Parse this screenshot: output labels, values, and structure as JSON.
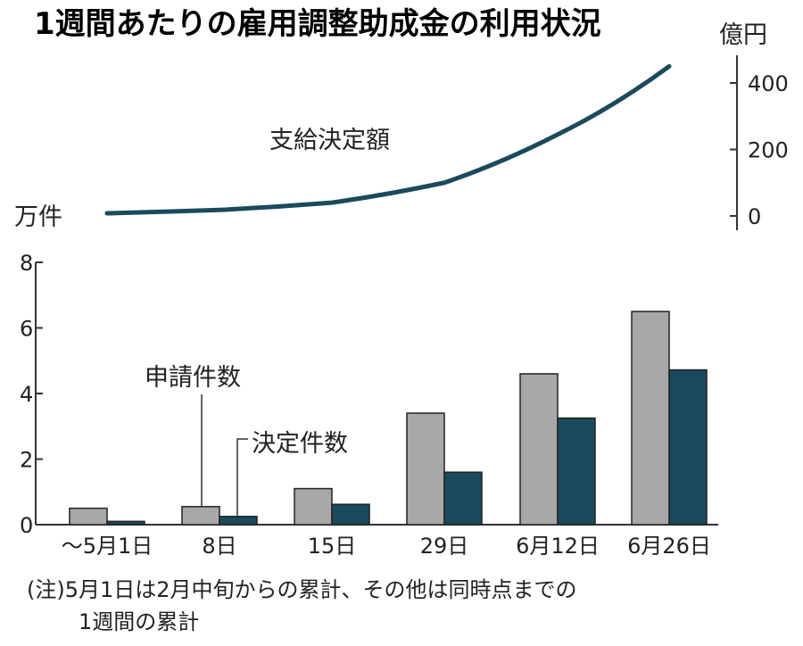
{
  "chart_data": {
    "title": "1週間あたりの雇用調整助成金の利用状況",
    "note_line1": "(注)5月1日は2月中旬からの累計、その他は同時点までの",
    "note_line2": "1週間の累計",
    "colors": {
      "applied": "#a8a8a8",
      "decided": "#1b4a5c",
      "line": "#1b4a5c",
      "axis": "#333333"
    },
    "line": {
      "type": "line",
      "name": "支給決定額",
      "unit": "億円",
      "ylim": [
        0,
        450
      ],
      "yticks": [
        0,
        200,
        400
      ],
      "values": [
        8,
        18,
        40,
        100,
        245,
        450
      ]
    },
    "bars": {
      "type": "bar",
      "unit": "万件",
      "ylim": [
        0,
        8
      ],
      "yticks": [
        0,
        2,
        4,
        6,
        8
      ],
      "categories": [
        "〜5月1日",
        "8日",
        "15日",
        "29日",
        "6月12日",
        "6月26日"
      ],
      "series": [
        {
          "name": "申請件数",
          "values": [
            0.5,
            0.55,
            1.1,
            3.4,
            4.6,
            6.5
          ]
        },
        {
          "name": "決定件数",
          "values": [
            0.1,
            0.25,
            0.62,
            1.6,
            3.25,
            4.72
          ]
        }
      ]
    }
  }
}
